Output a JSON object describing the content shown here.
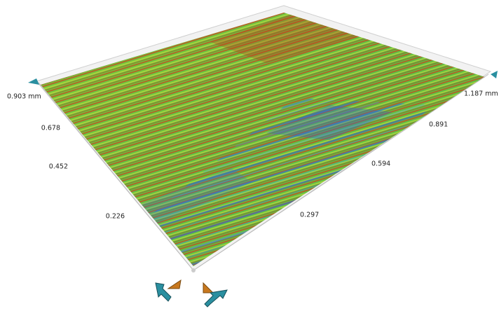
{
  "viewer": {
    "left_axis": {
      "labels": [
        "0.903 mm",
        "0.678",
        "0.452",
        "0.226"
      ]
    },
    "right_axis": {
      "labels": [
        "1.187 mm",
        "0.891",
        "0.594",
        "0.297"
      ]
    }
  }
}
